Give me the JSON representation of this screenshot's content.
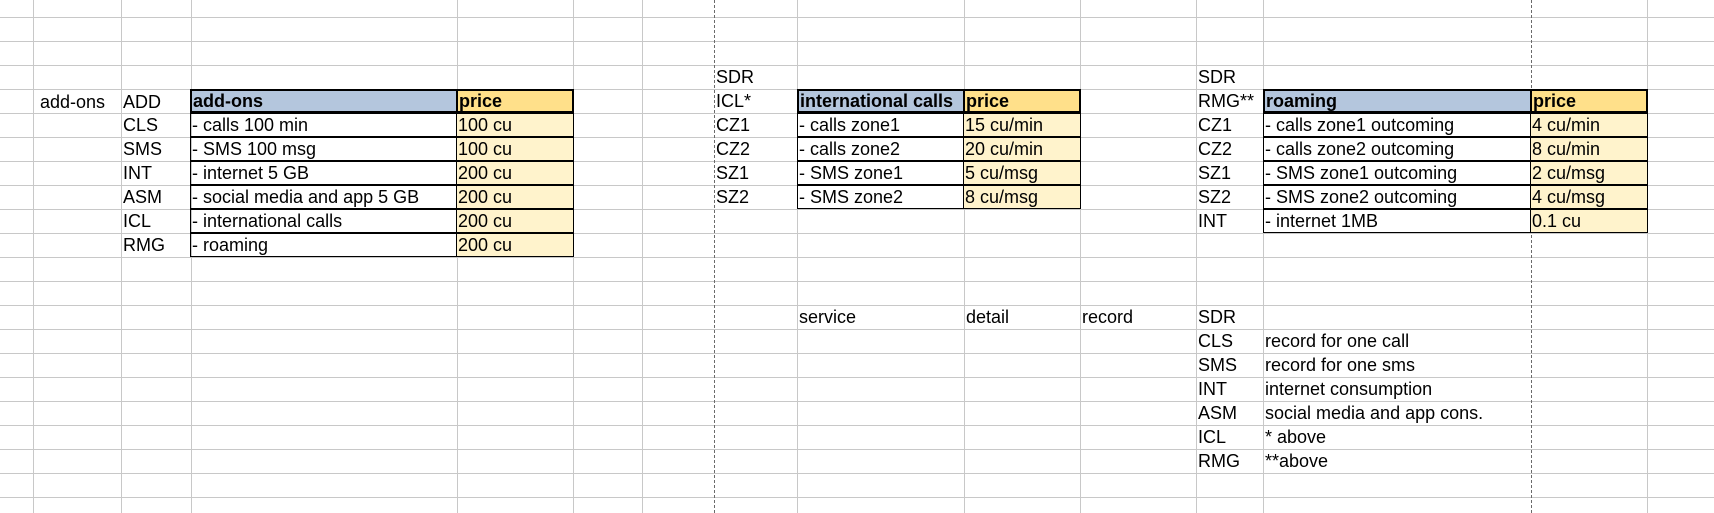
{
  "addons": {
    "label": "add-ons",
    "code_header": "ADD",
    "header": "add-ons",
    "price_header": "price",
    "rows": [
      {
        "code": "CLS",
        "name": "- calls 100 min",
        "price": "100 cu"
      },
      {
        "code": "SMS",
        "name": "- SMS 100 msg",
        "price": "100 cu"
      },
      {
        "code": "INT",
        "name": "- internet 5 GB",
        "price": "200 cu"
      },
      {
        "code": "ASM",
        "name": "- social media and app 5 GB",
        "price": "200 cu"
      },
      {
        "code": "ICL",
        "name": "- international calls",
        "price": "200 cu"
      },
      {
        "code": "RMG",
        "name": "- roaming",
        "price": "200 cu"
      }
    ]
  },
  "international": {
    "sdr": "SDR",
    "code_header": "ICL*",
    "header": "international calls",
    "price_header": "price",
    "rows": [
      {
        "code": "CZ1",
        "name": "- calls zone1",
        "price": "15 cu/min"
      },
      {
        "code": "CZ2",
        "name": "- calls zone2",
        "price": "20 cu/min"
      },
      {
        "code": "SZ1",
        "name": "- SMS zone1",
        "price": "5 cu/msg"
      },
      {
        "code": "SZ2",
        "name": "- SMS zone2",
        "price": "8 cu/msg"
      }
    ]
  },
  "roaming": {
    "sdr": "SDR",
    "code_header": "RMG**",
    "header": "roaming",
    "price_header": "price",
    "rows": [
      {
        "code": "CZ1",
        "name": "- calls zone1 outcoming",
        "price": "4 cu/min"
      },
      {
        "code": "CZ2",
        "name": "- calls zone2 outcoming",
        "price": "8 cu/min"
      },
      {
        "code": "SZ1",
        "name": "- SMS zone1 outcoming",
        "price": "2 cu/msg"
      },
      {
        "code": "SZ2",
        "name": "- SMS zone2 outcoming",
        "price": "4 cu/msg"
      },
      {
        "code": "INT",
        "name": "- internet 1MB",
        "price": "0.1 cu"
      }
    ]
  },
  "sdr_legend": {
    "service": "service",
    "detail": "detail",
    "record": "record",
    "sdr": "SDR",
    "rows": [
      {
        "code": "CLS",
        "text": "record for one call"
      },
      {
        "code": "SMS",
        "text": "record for one sms"
      },
      {
        "code": "INT",
        "text": "internet consumption"
      },
      {
        "code": "ASM",
        "text": "social media and app cons."
      },
      {
        "code": "ICL",
        "text": "* above"
      },
      {
        "code": "RMG",
        "text": "**above"
      }
    ]
  },
  "colors": {
    "header_blue": "#b4c6dd",
    "price_header_yellow": "#ffe08a",
    "price_cell_yellow": "#fff3cc",
    "gridline": "#c8c8c8"
  }
}
